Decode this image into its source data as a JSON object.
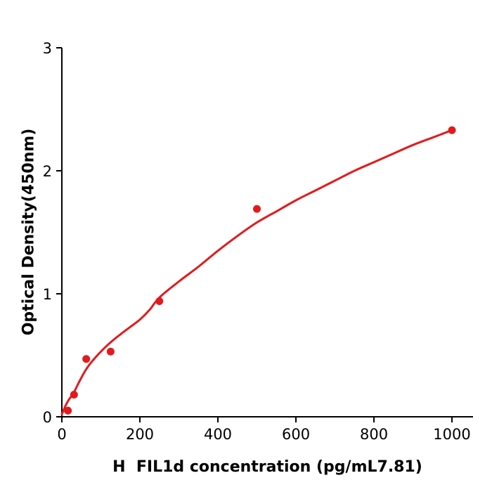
{
  "figure": {
    "background": "#ffffff",
    "curve_color": "#e31a1c",
    "marker_color": "#e31a1c",
    "axis_color": "#000000",
    "tick_label_color": "#000000"
  },
  "chart_data": {
    "type": "scatter",
    "title": "",
    "xlabel": "H  FIL1d concentration (pg/mL7.81)",
    "ylabel": "Optical Density(450nm)",
    "xlim": [
      0,
      1054
    ],
    "ylim": [
      0,
      3
    ],
    "x_ticks": [
      0,
      200,
      400,
      600,
      800,
      1000
    ],
    "y_ticks": [
      0,
      1,
      2,
      3
    ],
    "grid": false,
    "legend_position": "none",
    "series": [
      {
        "name": "standard-points",
        "type": "scatter",
        "marker": "circle",
        "color": "#e31a1c",
        "points": [
          {
            "x": 15.6,
            "y": 0.05
          },
          {
            "x": 31.25,
            "y": 0.18
          },
          {
            "x": 62.5,
            "y": 0.47
          },
          {
            "x": 125,
            "y": 0.53
          },
          {
            "x": 250,
            "y": 0.94
          },
          {
            "x": 500,
            "y": 1.69
          },
          {
            "x": 1000,
            "y": 2.33
          }
        ]
      },
      {
        "name": "fit-curve",
        "type": "line",
        "color": "#e31a1c",
        "points": [
          {
            "x": 0,
            "y": 0.02
          },
          {
            "x": 8,
            "y": 0.08
          },
          {
            "x": 16,
            "y": 0.13
          },
          {
            "x": 31,
            "y": 0.2
          },
          {
            "x": 47,
            "y": 0.3
          },
          {
            "x": 63,
            "y": 0.39
          },
          {
            "x": 80,
            "y": 0.46
          },
          {
            "x": 100,
            "y": 0.53
          },
          {
            "x": 123,
            "y": 0.6
          },
          {
            "x": 150,
            "y": 0.67
          },
          {
            "x": 175,
            "y": 0.73
          },
          {
            "x": 200,
            "y": 0.79
          },
          {
            "x": 225,
            "y": 0.87
          },
          {
            "x": 250,
            "y": 0.97
          },
          {
            "x": 300,
            "y": 1.1
          },
          {
            "x": 350,
            "y": 1.22
          },
          {
            "x": 400,
            "y": 1.35
          },
          {
            "x": 450,
            "y": 1.47
          },
          {
            "x": 500,
            "y": 1.58
          },
          {
            "x": 550,
            "y": 1.67
          },
          {
            "x": 600,
            "y": 1.76
          },
          {
            "x": 650,
            "y": 1.84
          },
          {
            "x": 700,
            "y": 1.92
          },
          {
            "x": 750,
            "y": 2.0
          },
          {
            "x": 800,
            "y": 2.07
          },
          {
            "x": 850,
            "y": 2.14
          },
          {
            "x": 900,
            "y": 2.21
          },
          {
            "x": 950,
            "y": 2.27
          },
          {
            "x": 1000,
            "y": 2.33
          }
        ]
      }
    ]
  }
}
